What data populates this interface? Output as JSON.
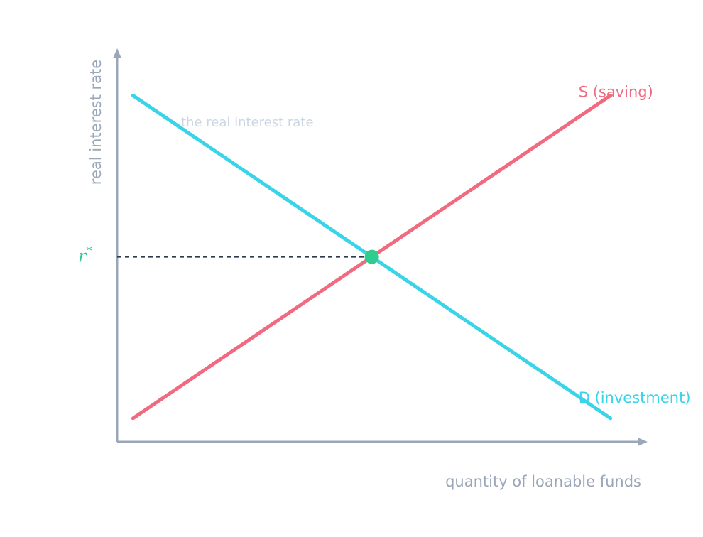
{
  "chart_data": {
    "type": "line",
    "title": "",
    "xlabel": "quantity of loanable funds",
    "ylabel": "real interest rate",
    "xlim": [
      0,
      10
    ],
    "ylim": [
      0,
      10
    ],
    "grid": false,
    "annotation": "the real interest rate",
    "equilibrium_label": "r",
    "equilibrium_label_sup": "*",
    "series": [
      {
        "name": "S (saving)",
        "color": "#f06b80",
        "x": [
          0.3,
          9.3
        ],
        "y": [
          0.6,
          8.8
        ]
      },
      {
        "name": "D (investment)",
        "color": "#3ad4e8",
        "x": [
          0.3,
          9.3
        ],
        "y": [
          8.8,
          0.6
        ]
      }
    ],
    "equilibrium": {
      "x": 4.8,
      "y": 4.7,
      "color": "#2fcc8f"
    }
  }
}
